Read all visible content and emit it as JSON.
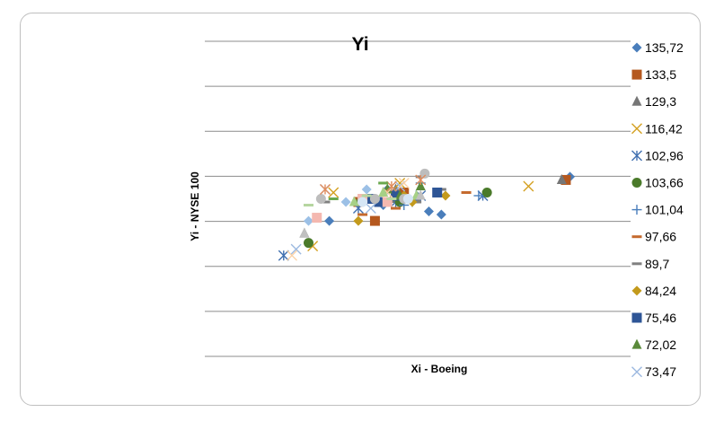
{
  "chart_data": {
    "type": "scatter",
    "title": "Yi",
    "xlabel": "Xi - Boeing",
    "ylabel": "Yi - NYSE 100",
    "grid": "horizontal",
    "legend_position": "right",
    "xlim": [
      0,
      100
    ],
    "ylim": [
      0,
      100
    ],
    "series": [
      {
        "name": "135,72",
        "color": "#4a7ebb",
        "marker": "diamond",
        "points": [
          [
            88,
            57
          ],
          [
            44,
            53
          ],
          [
            40,
            50
          ],
          [
            30,
            43
          ],
          [
            54,
            46
          ],
          [
            43,
            48
          ],
          [
            57,
            45
          ]
        ]
      },
      {
        "name": "133,5",
        "color": "#b5581e",
        "marker": "square",
        "points": [
          [
            87,
            56
          ],
          [
            41,
            43
          ],
          [
            37,
            49
          ],
          [
            48,
            52
          ]
        ]
      },
      {
        "name": "129,3",
        "color": "#767676",
        "marker": "triangle",
        "points": [
          [
            86,
            56
          ],
          [
            24,
            39
          ],
          [
            45,
            50
          ],
          [
            51,
            50
          ],
          [
            46,
            53
          ]
        ]
      },
      {
        "name": "116,42",
        "color": "#d4a020",
        "marker": "x",
        "points": [
          [
            78,
            54
          ],
          [
            26,
            35
          ],
          [
            31,
            52
          ],
          [
            47,
            55
          ]
        ]
      },
      {
        "name": "102,96",
        "color": "#4170b0",
        "marker": "star",
        "points": [
          [
            19,
            32
          ],
          [
            37,
            47
          ],
          [
            46,
            49
          ],
          [
            52,
            51
          ],
          [
            67,
            51
          ]
        ]
      },
      {
        "name": "103,66",
        "color": "#4a7a2a",
        "marker": "circle",
        "points": [
          [
            68,
            52
          ],
          [
            25,
            36
          ],
          [
            42,
            49
          ],
          [
            47,
            49
          ]
        ]
      },
      {
        "name": "101,04",
        "color": "#4a7ebb",
        "marker": "plus",
        "points": [
          [
            66,
            51
          ],
          [
            48,
            48
          ],
          [
            52,
            55
          ],
          [
            50,
            49
          ]
        ]
      },
      {
        "name": "97,66",
        "color": "#c56a2e",
        "marker": "dash",
        "points": [
          [
            63,
            52
          ],
          [
            46,
            47
          ],
          [
            38,
            45
          ],
          [
            43,
            50
          ]
        ]
      },
      {
        "name": "89,7",
        "color": "#808080",
        "marker": "dash",
        "points": [
          [
            57,
            53
          ],
          [
            52,
            57
          ],
          [
            51,
            49
          ],
          [
            29,
            49
          ]
        ]
      },
      {
        "name": "84,24",
        "color": "#c39a1c",
        "marker": "diamond",
        "points": [
          [
            58,
            51
          ],
          [
            37,
            43
          ],
          [
            50,
            49
          ],
          [
            48,
            51
          ]
        ]
      },
      {
        "name": "75,46",
        "color": "#2e5596",
        "marker": "square",
        "points": [
          [
            56,
            52
          ],
          [
            42,
            49
          ],
          [
            46,
            51
          ],
          [
            40,
            50
          ]
        ]
      },
      {
        "name": "72,02",
        "color": "#5a8a3a",
        "marker": "triangle",
        "points": [
          [
            52,
            54
          ],
          [
            47,
            51
          ],
          [
            44,
            53
          ],
          [
            37,
            49
          ]
        ]
      },
      {
        "name": "73,47",
        "color": "#9cb9e0",
        "marker": "x",
        "points": [
          [
            47,
            54
          ],
          [
            22,
            34
          ],
          [
            29,
            53
          ],
          [
            40,
            47
          ]
        ]
      },
      {
        "name": "",
        "color": "#9cc0e6",
        "marker": "diamond",
        "points": [
          [
            25,
            43
          ],
          [
            39,
            53
          ],
          [
            34,
            49
          ]
        ]
      },
      {
        "name": "",
        "color": "#f4b8b0",
        "marker": "square",
        "points": [
          [
            27,
            44
          ],
          [
            38,
            50
          ],
          [
            44,
            49
          ]
        ]
      },
      {
        "name": "",
        "color": "#bdbdbd",
        "marker": "circle",
        "points": [
          [
            53,
            58
          ],
          [
            28,
            50
          ],
          [
            41,
            50
          ],
          [
            48,
            50
          ]
        ]
      },
      {
        "name": "",
        "color": "#b6d6a0",
        "marker": "dash",
        "points": [
          [
            25,
            48
          ],
          [
            39,
            51
          ],
          [
            45,
            50
          ]
        ]
      },
      {
        "name": "",
        "color": "#fbd3a8",
        "marker": "x",
        "points": [
          [
            48,
            55
          ],
          [
            21,
            32
          ],
          [
            44,
            52
          ]
        ]
      },
      {
        "name": "",
        "color": "#a6d086",
        "marker": "triangle",
        "points": [
          [
            36,
            49
          ],
          [
            43,
            52
          ],
          [
            51,
            51
          ]
        ]
      },
      {
        "name": "",
        "color": "#e08c5c",
        "marker": "star",
        "points": [
          [
            29,
            53
          ],
          [
            52,
            56
          ],
          [
            45,
            54
          ]
        ]
      },
      {
        "name": "",
        "color": "#c0c0c0",
        "marker": "triangle",
        "points": [
          [
            24,
            39
          ],
          [
            52,
            51
          ]
        ]
      },
      {
        "name": "",
        "color": "#d6e6f5",
        "marker": "circle",
        "points": [
          [
            38,
            49
          ],
          [
            49,
            50
          ]
        ]
      },
      {
        "name": "",
        "color": "#6aa84f",
        "marker": "dash",
        "points": [
          [
            43,
            55
          ],
          [
            31,
            50
          ]
        ]
      }
    ]
  }
}
